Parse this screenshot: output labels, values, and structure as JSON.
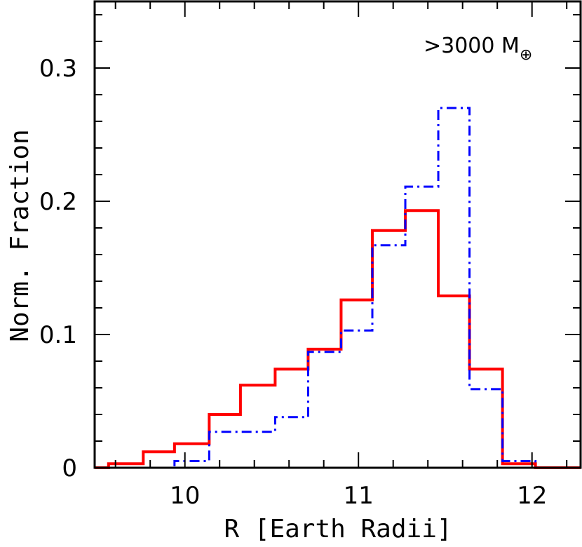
{
  "chart_data": {
    "type": "histogram",
    "xlabel": "R [Earth Radii]",
    "ylabel": "Norm. Fraction",
    "annotation": {
      "prefix": ">3000 M",
      "subscript": "⊕"
    },
    "xlim": [
      9.48,
      12.28
    ],
    "ylim": [
      0,
      0.35
    ],
    "x_ticks": [
      10,
      11,
      12
    ],
    "x_tick_labels": [
      "10",
      "11",
      "12"
    ],
    "y_ticks": [
      0,
      0.1,
      0.2,
      0.3
    ],
    "y_tick_labels": [
      "0",
      "0.1",
      "0.2",
      "0.3"
    ],
    "bin_edges": [
      9.48,
      9.56,
      9.76,
      9.94,
      10.14,
      10.32,
      10.52,
      10.71,
      10.9,
      11.08,
      11.27,
      11.46,
      11.64,
      11.83,
      12.02,
      12.28
    ],
    "series": [
      {
        "style": "solid",
        "color": "#ff0000",
        "values": [
          0.0,
          0.003,
          0.012,
          0.018,
          0.04,
          0.062,
          0.074,
          0.089,
          0.126,
          0.178,
          0.193,
          0.129,
          0.074,
          0.003,
          0.0
        ]
      },
      {
        "style": "dash-dot",
        "color": "#0000ff",
        "values": [
          0.0,
          0.0,
          0.0,
          0.005,
          0.027,
          0.027,
          0.038,
          0.087,
          0.103,
          0.167,
          0.211,
          0.27,
          0.059,
          0.005,
          0.0
        ]
      }
    ]
  }
}
